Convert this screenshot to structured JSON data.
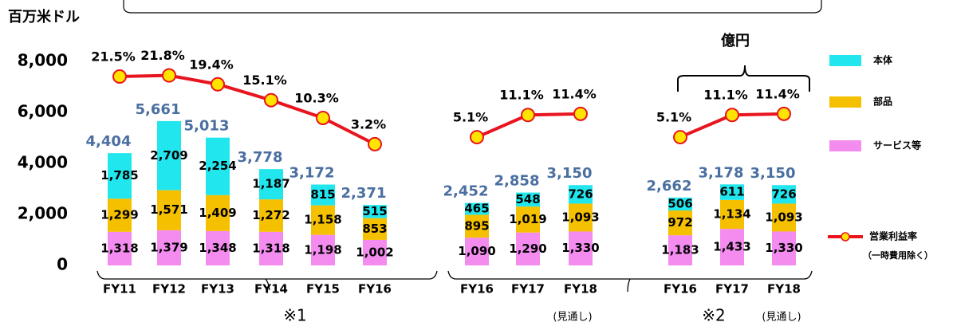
{
  "chart_data": {
    "type": "bar",
    "stacked": true,
    "y_unit_label": "百万米ドル",
    "categories": [
      "FY11",
      "FY12",
      "FY13",
      "FY14",
      "FY15",
      "FY16",
      "FY16",
      "FY17",
      "FY18",
      "FY16",
      "FY17",
      "FY18"
    ],
    "ylim": [
      0,
      8000
    ],
    "yticks": [
      0,
      {
        "value": 2000,
        "label": "2,000"
      },
      {
        "value": 4000,
        "label": "4,000"
      },
      {
        "value": 6000,
        "label": "6,000"
      },
      {
        "value": 8000,
        "label": "8,000"
      }
    ],
    "y2lim": [
      -29.6,
      25.6
    ],
    "series": [
      {
        "name": "サービス等",
        "color": "#f48cf0",
        "values": [
          1318,
          1379,
          1348,
          1318,
          1198,
          1002,
          1090,
          1290,
          1330,
          1183,
          1433,
          1330
        ],
        "value_labels": [
          "1,318",
          "1,379",
          "1,348",
          "1,318",
          "1,198",
          "1,002",
          "1,090",
          "1,290",
          "1,330",
          "1,183",
          "1,433",
          "1,330"
        ]
      },
      {
        "name": "部品",
        "color": "#f5c000",
        "values": [
          1299,
          1571,
          1409,
          1272,
          1158,
          853,
          895,
          1019,
          1093,
          972,
          1134,
          1093
        ],
        "value_labels": [
          "1,299",
          "1,571",
          "1,409",
          "1,272",
          "1,158",
          "853",
          "895",
          "1,019",
          "1,093",
          "972",
          "1,134",
          "1,093"
        ]
      },
      {
        "name": "本体",
        "color": "#22e6ee",
        "values": [
          1785,
          2709,
          2254,
          1187,
          815,
          515,
          465,
          548,
          726,
          506,
          611,
          726
        ],
        "value_labels": [
          "1,785",
          "2,709",
          "2,254",
          "1,187",
          "815",
          "515",
          "465",
          "548",
          "726",
          "506",
          "611",
          "726"
        ]
      },
      {
        "name": "営業利益率",
        "type": "line",
        "axis": "y2",
        "color": "#e8141e",
        "marker_color": "#ffe400",
        "values": [
          21.5,
          21.8,
          19.4,
          15.1,
          10.3,
          3.2,
          5.1,
          11.1,
          11.4,
          5.1,
          11.1,
          11.4
        ],
        "value_labels": [
          "21.5%",
          "21.8%",
          "19.4%",
          "15.1%",
          "10.3%",
          "3.2%",
          "5.1%",
          "11.1%",
          "11.4%",
          "5.1%",
          "11.1%",
          "11.4%"
        ]
      }
    ],
    "totals": [
      4404,
      5661,
      5013,
      3778,
      3172,
      2371,
      2452,
      2858,
      3150,
      2662,
      3178,
      3150
    ],
    "total_labels": [
      "4,404",
      "5,661",
      "5,013",
      "3,778",
      "3,172",
      "2,371",
      "2,452",
      "2,858",
      "3,150",
      "2,662",
      "3,178",
      "3,150"
    ],
    "legend_note": "（一時費用除く）",
    "annotations": [
      "※1",
      "※2",
      "(見通し)",
      "(見通し)",
      "億円"
    ]
  }
}
